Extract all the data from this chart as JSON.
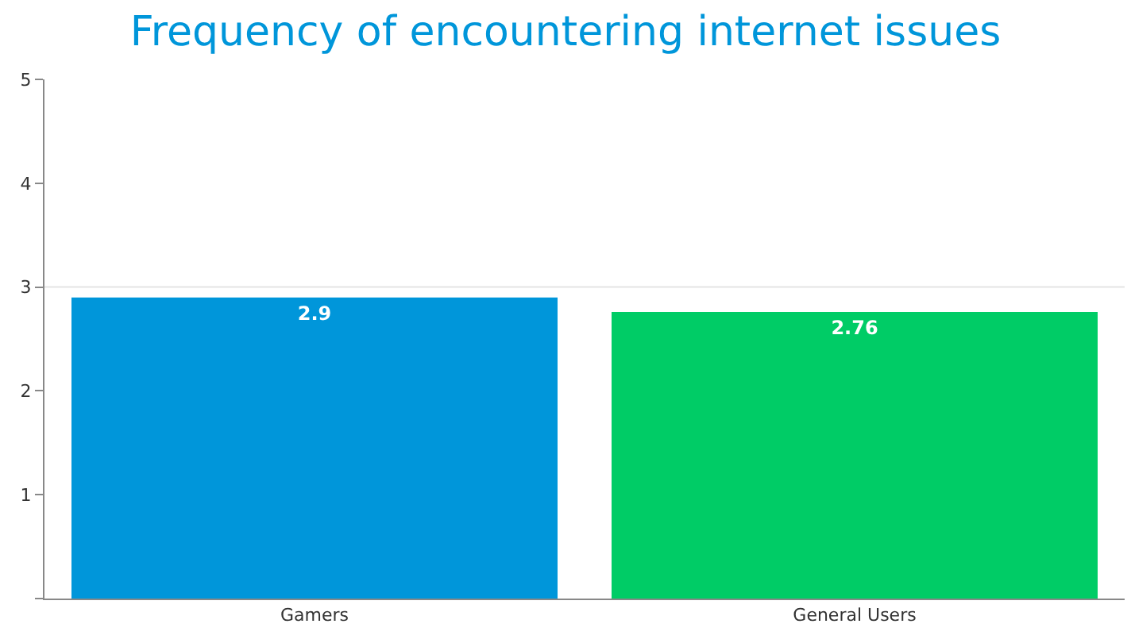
{
  "chart_data": {
    "type": "bar",
    "title": "Frequency of encountering internet issues",
    "categories": [
      "Gamers",
      "General Users"
    ],
    "values": [
      2.9,
      2.76
    ],
    "colors": [
      "#0096da",
      "#00cc66"
    ],
    "ylim": [
      0,
      5
    ],
    "yticks": [
      {
        "value": 0,
        "label": null
      },
      1,
      2,
      3,
      4,
      5
    ],
    "ref_lines": [
      {
        "axis": "y",
        "value": 3,
        "color": "#e4e4e4"
      }
    ],
    "data_labels": true
  }
}
